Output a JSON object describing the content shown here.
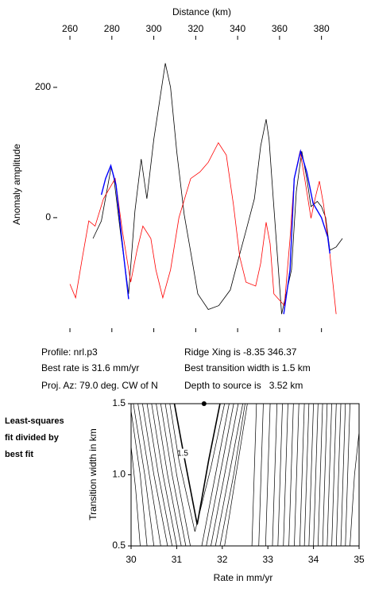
{
  "chart_data": [
    {
      "type": "line",
      "xlabel": "Distance (km)",
      "ylabel": "Anomaly amplitude",
      "xlim": [
        254,
        391.5
      ],
      "ylim": [
        -166,
        267
      ],
      "xticks": [
        260,
        280,
        300,
        320,
        340,
        360,
        380
      ],
      "yticks": [
        0,
        200
      ],
      "series": [
        {
          "color": "#000000",
          "x": [
            271,
            275,
            279.7,
            281,
            284,
            288,
            291,
            294,
            296.7,
            300,
            305.5,
            308,
            311,
            314.5,
            318,
            321,
            326,
            331,
            336.5,
            340,
            344,
            348,
            351,
            353.6,
            355,
            357,
            361,
            365.7,
            368,
            370.6,
            373,
            375,
            378,
            380,
            382,
            384,
            387,
            390
          ],
          "values": [
            -32,
            -5,
            78,
            60,
            -20,
            -117,
            10,
            90,
            29,
            120,
            237,
            200,
            100,
            5,
            -60,
            -117,
            -141,
            -135,
            -111,
            -68,
            -20,
            29,
            110,
            151,
            120,
            29,
            -148,
            -80,
            40,
            102,
            60,
            17,
            25,
            17,
            0,
            -50,
            -45,
            -32
          ]
        },
        {
          "color": "#ff0000",
          "x": [
            260,
            262.7,
            266,
            269,
            272,
            276,
            281.6,
            285,
            289,
            292,
            294.8,
            298.6,
            301,
            304.3,
            308,
            312,
            317.6,
            322,
            326,
            330.8,
            334.6,
            338,
            341,
            344,
            348.6,
            351,
            353.6,
            355.5,
            357.3,
            362.3,
            365,
            367,
            369.8,
            372,
            375,
            377,
            379,
            381,
            384,
            387
          ],
          "values": [
            -102,
            -123,
            -60,
            -5,
            -13,
            29,
            60,
            -20,
            -99,
            -50,
            -13,
            -32,
            -80,
            -123,
            -80,
            0,
            60,
            70,
            85,
            115,
            96,
            20,
            -60,
            -99,
            -105,
            -70,
            -7,
            -40,
            -117,
            -135,
            -32,
            60,
            102,
            60,
            -1,
            30,
            56,
            20,
            -56,
            -148
          ]
        },
        {
          "color": "#0000ff",
          "x": [
            275,
            277,
            279.5,
            282,
            285,
            288,
            null,
            362,
            365,
            367,
            370,
            373,
            376,
            380,
            383,
            384
          ],
          "values": [
            35,
            60,
            80,
            50,
            -40,
            -125,
            null,
            -148,
            -80,
            60,
            102,
            70,
            22,
            0,
            -30,
            -55
          ]
        }
      ],
      "annotations": [
        "Profile: nrl.p3",
        "Best rate is 31.6 mm/yr",
        "Proj. Az: 79.0 deg. CW of N",
        "Ridge Xing is -8.35 346.37",
        "Best transition width is 1.5 km",
        "Depth to source is   3.52 km"
      ]
    },
    {
      "type": "contour",
      "xlabel": "Rate in mm/yr",
      "ylabel": "Transition width in km",
      "xlim": [
        30,
        35
      ],
      "ylim": [
        0.5,
        1.5
      ],
      "xticks": [
        30,
        31,
        32,
        33,
        34,
        35
      ],
      "yticks": [
        0.5,
        {
          "value": 1,
          "label": "1.0"
        },
        1.5
      ],
      "best": {
        "x": 31.6,
        "y": 1.5
      },
      "contours": [
        {
          "level": 1.5,
          "x": [
            30.95,
            31.15,
            31.45,
            31.7,
            31.95
          ],
          "y": [
            1.5,
            1.15,
            0.65,
            1.1,
            1.5
          ]
        },
        {
          "x": [
            30.85,
            31.05,
            31.4,
            31.75,
            32.05
          ],
          "y": [
            1.5,
            1.1,
            0.6,
            1.05,
            1.5
          ]
        },
        {
          "x": [
            30.75,
            31.0,
            31.3,
            null,
            31.55,
            31.85,
            32.15
          ],
          "y": [
            1.5,
            1.0,
            0.5,
            null,
            0.5,
            1.0,
            1.5
          ]
        },
        {
          "x": [
            30.65,
            30.9,
            31.2,
            null,
            31.65,
            31.95,
            32.25
          ],
          "y": [
            1.5,
            1.0,
            0.5,
            null,
            0.5,
            1.0,
            1.5
          ]
        },
        {
          "x": [
            30.55,
            30.8,
            31.1,
            null,
            31.75,
            32.05,
            32.35
          ],
          "y": [
            1.5,
            1.0,
            0.5,
            null,
            0.5,
            1.0,
            1.5
          ]
        },
        {
          "x": [
            30.45,
            30.7,
            31.0,
            null,
            31.85,
            32.15,
            32.45
          ],
          "y": [
            1.5,
            1.0,
            0.5,
            null,
            0.5,
            1.0,
            1.5
          ]
        },
        {
          "x": [
            30.35,
            30.6,
            30.9,
            null,
            31.95,
            32.25,
            32.5
          ],
          "y": [
            1.5,
            1.0,
            0.5,
            null,
            0.5,
            1.0,
            1.5
          ]
        },
        {
          "x": [
            30.25,
            30.5,
            30.8,
            null,
            32.05,
            32.3,
            32.55
          ],
          "y": [
            1.5,
            1.0,
            0.5,
            null,
            0.5,
            1.0,
            1.5
          ]
        },
        {
          "x": [
            30.15,
            30.4,
            30.65
          ],
          "y": [
            1.5,
            1.0,
            0.5
          ]
        },
        {
          "x": [
            30.05,
            30.3,
            30.5
          ],
          "y": [
            1.5,
            1.0,
            0.5
          ]
        },
        {
          "x": [
            30,
            30.2,
            30.35
          ],
          "y": [
            1.45,
            1.0,
            0.5
          ]
        },
        {
          "x": [
            30,
            30.1,
            30.2
          ],
          "y": [
            1.2,
            0.9,
            0.5
          ]
        },
        {
          "x": [
            32.65,
            32.7,
            32.75
          ],
          "y": [
            0.5,
            1.0,
            1.5
          ]
        },
        {
          "x": [
            32.8,
            32.85,
            32.9
          ],
          "y": [
            0.5,
            1.0,
            1.5
          ]
        },
        {
          "x": [
            32.95,
            33.0,
            33.05
          ],
          "y": [
            0.5,
            1.0,
            1.5
          ]
        },
        {
          "x": [
            33.1,
            33.15,
            33.2
          ],
          "y": [
            0.5,
            1.0,
            1.5
          ]
        },
        {
          "x": [
            33.22,
            33.27,
            33.32
          ],
          "y": [
            0.5,
            1.0,
            1.5
          ]
        },
        {
          "x": [
            33.34,
            33.39,
            33.44
          ],
          "y": [
            0.5,
            1.0,
            1.5
          ]
        },
        {
          "x": [
            33.46,
            33.51,
            33.56
          ],
          "y": [
            0.5,
            1.0,
            1.5
          ]
        },
        {
          "x": [
            33.58,
            33.63,
            33.68
          ],
          "y": [
            0.5,
            1.0,
            1.5
          ]
        },
        {
          "x": [
            33.7,
            33.75,
            33.8
          ],
          "y": [
            0.5,
            1.0,
            1.5
          ]
        },
        {
          "x": [
            33.8,
            33.85,
            33.9
          ],
          "y": [
            0.5,
            1.0,
            1.5
          ]
        },
        {
          "x": [
            33.9,
            33.95,
            34.0
          ],
          "y": [
            0.5,
            1.0,
            1.5
          ]
        },
        {
          "x": [
            34.0,
            34.05,
            34.1
          ],
          "y": [
            0.5,
            1.0,
            1.5
          ]
        },
        {
          "x": [
            34.1,
            34.15,
            34.2
          ],
          "y": [
            0.5,
            1.0,
            1.5
          ]
        },
        {
          "x": [
            34.2,
            34.25,
            34.3
          ],
          "y": [
            0.5,
            1.0,
            1.5
          ]
        },
        {
          "x": [
            34.3,
            34.35,
            34.4
          ],
          "y": [
            0.5,
            1.0,
            1.5
          ]
        },
        {
          "x": [
            34.4,
            34.45,
            34.5
          ],
          "y": [
            0.5,
            1.0,
            1.5
          ]
        },
        {
          "x": [
            34.5,
            34.55,
            34.6
          ],
          "y": [
            0.5,
            1.0,
            1.5
          ]
        },
        {
          "x": [
            34.6,
            34.65,
            34.7
          ],
          "y": [
            0.5,
            1.0,
            1.5
          ]
        },
        {
          "x": [
            34.7,
            34.75,
            34.8
          ],
          "y": [
            0.5,
            1.0,
            1.5
          ]
        },
        {
          "x": [
            34.8,
            34.9,
            35
          ],
          "y": [
            0.5,
            1.0,
            1.3
          ]
        }
      ],
      "annotations": [
        "Least-squares",
        "fit divided by",
        "best fit"
      ]
    }
  ]
}
